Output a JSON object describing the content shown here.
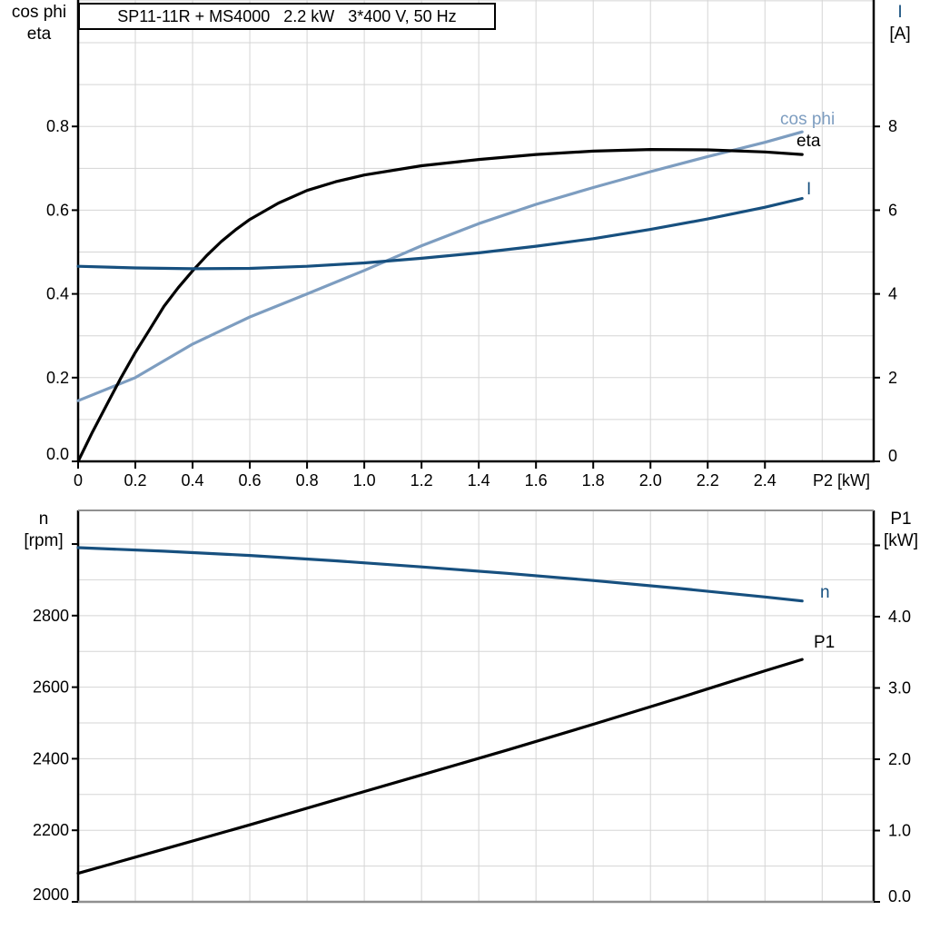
{
  "colors": {
    "black": "#000000",
    "dark_blue": "#17507F",
    "light_blue": "#7D9DC0",
    "grid": "#D5D5D5",
    "gray_border": "#909090"
  },
  "chart_data": [
    {
      "type": "line",
      "title": "SP11-11R + MS4000   2.2 kW   3*400 V, 50 Hz",
      "xlabel": "P2 [kW]",
      "ylabel_left": [
        "cos phi",
        "eta"
      ],
      "ylabel_right": [
        "I",
        "[A]"
      ],
      "xlim": [
        0,
        2.78
      ],
      "ylim_left": [
        0,
        1.102
      ],
      "ylim_right": [
        0,
        11.02
      ],
      "grid": true,
      "grid_x_step": 0.2,
      "grid_y_step_left": 0.1,
      "x_tick_vals": [
        0,
        0.2,
        0.4,
        0.6,
        0.8,
        1.0,
        1.2,
        1.4,
        1.6,
        1.8,
        2.0,
        2.2,
        2.4
      ],
      "x_tick_labels": [
        "0",
        "0.2",
        "0.4",
        "0.6",
        "0.8",
        "1.0",
        "1.2",
        "1.4",
        "1.6",
        "1.8",
        "2.0",
        "2.2",
        "2.4"
      ],
      "y_tick_vals_left": [
        0,
        0.2,
        0.4,
        0.6,
        0.8
      ],
      "y_tick_labels_left": [
        "0.0",
        "0.2",
        "0.4",
        "0.6",
        "0.8"
      ],
      "y_tick_vals_right": [
        0,
        2,
        4,
        6,
        8
      ],
      "y_tick_labels_right": [
        "0",
        "2",
        "4",
        "6",
        "8"
      ],
      "borders": {
        "top": "none",
        "bottom": "black"
      },
      "series": [
        {
          "name": "cos phi",
          "axis": "left",
          "color_key": "light_blue",
          "x": [
            0,
            0.2,
            0.4,
            0.6,
            0.8,
            1.0,
            1.2,
            1.4,
            1.6,
            1.8,
            2.0,
            2.2,
            2.4,
            2.53
          ],
          "y": [
            0.145,
            0.2,
            0.28,
            0.345,
            0.4,
            0.456,
            0.515,
            0.568,
            0.614,
            0.654,
            0.692,
            0.728,
            0.762,
            0.787
          ],
          "label": {
            "text": "cos phi",
            "px": [
              859,
              131
            ]
          }
        },
        {
          "name": "eta",
          "axis": "left",
          "color_key": "black",
          "x": [
            0,
            0.05,
            0.1,
            0.15,
            0.2,
            0.25,
            0.3,
            0.35,
            0.4,
            0.45,
            0.5,
            0.55,
            0.6,
            0.7,
            0.8,
            0.9,
            1.0,
            1.2,
            1.4,
            1.6,
            1.8,
            2.0,
            2.2,
            2.4,
            2.53
          ],
          "y": [
            0,
            0.07,
            0.135,
            0.2,
            0.26,
            0.315,
            0.37,
            0.415,
            0.455,
            0.492,
            0.525,
            0.553,
            0.578,
            0.617,
            0.647,
            0.668,
            0.684,
            0.706,
            0.721,
            0.733,
            0.741,
            0.745,
            0.744,
            0.739,
            0.733
          ],
          "label": {
            "text": "eta",
            "px": [
              877,
              155
            ]
          }
        },
        {
          "name": "I",
          "axis": "right",
          "color_key": "dark_blue",
          "x": [
            0,
            0.2,
            0.4,
            0.6,
            0.8,
            1.0,
            1.2,
            1.4,
            1.6,
            1.8,
            2.0,
            2.2,
            2.4,
            2.53
          ],
          "y": [
            4.66,
            4.62,
            4.6,
            4.61,
            4.66,
            4.74,
            4.85,
            4.98,
            5.14,
            5.32,
            5.54,
            5.79,
            6.07,
            6.28
          ],
          "label": {
            "text": "I",
            "px": [
              888,
              208
            ]
          }
        }
      ]
    },
    {
      "type": "line",
      "title": "",
      "xlabel": "",
      "ylabel_left": [
        "n",
        "[rpm]"
      ],
      "ylabel_right": [
        "P1",
        "[kW]"
      ],
      "xlim": [
        0,
        2.78
      ],
      "ylim_left": [
        2000,
        3094
      ],
      "ylim_right": [
        0,
        5.49
      ],
      "grid": true,
      "grid_x_step": 0.2,
      "grid_y_step_left": 100,
      "x_tick_vals": [],
      "x_tick_labels": [],
      "y_tick_vals_left": [
        2000,
        2200,
        2400,
        2600,
        2800,
        3000
      ],
      "y_tick_labels_left": [
        "2000",
        "2200",
        "2400",
        "2600",
        "2800",
        ""
      ],
      "y_tick_vals_right": [
        0,
        1,
        2,
        3,
        4,
        5
      ],
      "y_tick_labels_right": [
        "0.0",
        "1.0",
        "2.0",
        "3.0",
        "4.0",
        ""
      ],
      "borders": {
        "top": "gray",
        "bottom": "gray"
      },
      "series": [
        {
          "name": "n",
          "axis": "left",
          "color_key": "dark_blue",
          "x": [
            0,
            0.3,
            0.6,
            0.9,
            1.2,
            1.5,
            1.8,
            2.1,
            2.4,
            2.53
          ],
          "y": [
            2990,
            2980,
            2968,
            2953,
            2936,
            2918,
            2898,
            2876,
            2852,
            2841
          ],
          "label": {
            "text": "n",
            "px": [
              903,
              652
            ]
          }
        },
        {
          "name": "P1",
          "axis": "right",
          "color_key": "black",
          "x": [
            0,
            0.3,
            0.6,
            0.9,
            1.2,
            1.5,
            1.8,
            2.1,
            2.4,
            2.53
          ],
          "y": [
            0.4,
            0.74,
            1.08,
            1.43,
            1.78,
            2.13,
            2.49,
            2.86,
            3.24,
            3.4
          ],
          "label": {
            "text": "P1",
            "px": [
              896,
              707
            ]
          }
        }
      ]
    }
  ]
}
